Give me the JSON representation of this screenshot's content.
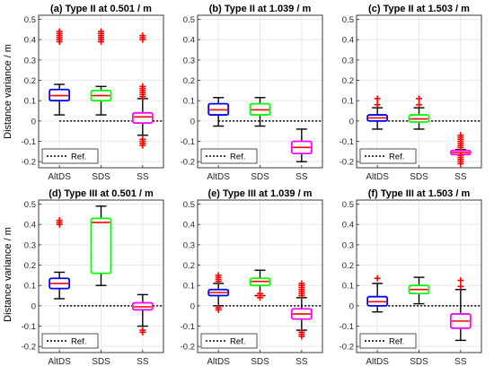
{
  "figure": {
    "ylabel": "Distance variance / m",
    "legend_label": "Ref."
  },
  "chart_data": [
    {
      "type": "box",
      "title": "(a) Type II at 0.501 / m",
      "ylabel": "Distance variance / m",
      "ylim": [
        -0.23,
        0.52
      ],
      "yticks": [
        "0.5",
        "0.4",
        "0.3",
        "0.2",
        "0.1",
        "0",
        "-0.1",
        "-0.2"
      ],
      "categories": [
        "AltDS",
        "SDS",
        "SS"
      ],
      "box_colors": [
        "#0000ff",
        "#00ff00",
        "#ff00ff"
      ],
      "median_color": "#ff0000",
      "outlier_color": "#ff0000",
      "reference_y": 0,
      "legend": "Ref.",
      "legend_position": "bottom-left",
      "boxes": [
        {
          "label": "AltDS",
          "wlo": 0.03,
          "q1": 0.1,
          "med": 0.125,
          "q3": 0.155,
          "whi": 0.18,
          "outliers": [
            0.39,
            0.4,
            0.41,
            0.42,
            0.43,
            0.44
          ]
        },
        {
          "label": "SDS",
          "wlo": 0.03,
          "q1": 0.1,
          "med": 0.125,
          "q3": 0.15,
          "whi": 0.17,
          "outliers": [
            0.39,
            0.4,
            0.41,
            0.42,
            0.43,
            0.44
          ]
        },
        {
          "label": "SS",
          "wlo": -0.07,
          "q1": -0.01,
          "med": 0.02,
          "q3": 0.04,
          "whi": 0.11,
          "outliers": [
            0.12,
            0.13,
            0.14,
            0.15,
            0.16,
            0.17,
            -0.09,
            -0.1,
            -0.11,
            -0.12,
            0.4,
            0.41,
            0.42
          ]
        }
      ]
    },
    {
      "type": "box",
      "title": "(b) Type II at 1.039 / m",
      "ylim": [
        -0.23,
        0.52
      ],
      "yticks": [
        "0.5",
        "0.4",
        "0.3",
        "0.2",
        "0.1",
        "0",
        "-0.1",
        "-0.2"
      ],
      "categories": [
        "AltDS",
        "SDS",
        "SS"
      ],
      "box_colors": [
        "#0000ff",
        "#00ff00",
        "#ff00ff"
      ],
      "median_color": "#ff0000",
      "outlier_color": "#ff0000",
      "reference_y": 0,
      "legend": "Ref.",
      "legend_position": "bottom-left",
      "boxes": [
        {
          "label": "AltDS",
          "wlo": -0.025,
          "q1": 0.03,
          "med": 0.055,
          "q3": 0.085,
          "whi": 0.115,
          "outliers": []
        },
        {
          "label": "SDS",
          "wlo": -0.025,
          "q1": 0.03,
          "med": 0.055,
          "q3": 0.085,
          "whi": 0.115,
          "outliers": []
        },
        {
          "label": "SS",
          "wlo": -0.2,
          "q1": -0.16,
          "med": -0.13,
          "q3": -0.1,
          "whi": -0.04,
          "outliers": []
        }
      ]
    },
    {
      "type": "box",
      "title": "(c) Type II at 1.503 / m",
      "ylim": [
        -0.23,
        0.52
      ],
      "yticks": [
        "0.5",
        "0.4",
        "0.3",
        "0.2",
        "0.1",
        "0",
        "-0.1",
        "-0.2"
      ],
      "categories": [
        "AltDS",
        "SDS",
        "SS"
      ],
      "box_colors": [
        "#0000ff",
        "#00ff00",
        "#ff00ff"
      ],
      "median_color": "#ff0000",
      "outlier_color": "#ff0000",
      "reference_y": 0,
      "legend": "Ref.",
      "legend_position": "bottom-left",
      "boxes": [
        {
          "label": "AltDS",
          "wlo": -0.04,
          "q1": 0.0,
          "med": 0.015,
          "q3": 0.03,
          "whi": 0.065,
          "outliers": [
            0.08,
            0.11
          ]
        },
        {
          "label": "SDS",
          "wlo": -0.04,
          "q1": -0.005,
          "med": 0.01,
          "q3": 0.03,
          "whi": 0.065,
          "outliers": [
            0.08,
            0.11
          ]
        },
        {
          "label": "SS",
          "wlo": -0.165,
          "q1": -0.165,
          "med": -0.155,
          "q3": -0.145,
          "whi": -0.14,
          "outliers": [
            -0.07,
            -0.08,
            -0.09,
            -0.1,
            -0.11,
            -0.12,
            -0.13,
            -0.17,
            -0.18,
            -0.19,
            -0.2,
            -0.21
          ]
        }
      ]
    },
    {
      "type": "box",
      "title": "(d) Type III at 0.501 / m",
      "ylim": [
        -0.23,
        0.52
      ],
      "yticks": [
        "0.5",
        "0.4",
        "0.3",
        "0.2",
        "0.1",
        "0",
        "-0.1",
        "-0.2"
      ],
      "categories": [
        "AltDS",
        "SDS",
        "SS"
      ],
      "box_colors": [
        "#0000ff",
        "#00ff00",
        "#ff00ff"
      ],
      "median_color": "#ff0000",
      "outlier_color": "#ff0000",
      "reference_y": 0,
      "legend": "Ref.",
      "legend_position": "bottom-left",
      "boxes": [
        {
          "label": "AltDS",
          "wlo": 0.035,
          "q1": 0.085,
          "med": 0.11,
          "q3": 0.135,
          "whi": 0.165,
          "outliers": [
            0.4,
            0.41,
            0.42
          ]
        },
        {
          "label": "SDS",
          "wlo": 0.1,
          "q1": 0.16,
          "med": 0.41,
          "q3": 0.43,
          "whi": 0.49,
          "outliers": []
        },
        {
          "label": "SS",
          "wlo": -0.1,
          "q1": -0.02,
          "med": -0.005,
          "q3": 0.015,
          "whi": 0.055,
          "outliers": [
            -0.12,
            -0.13
          ]
        }
      ]
    },
    {
      "type": "box",
      "title": "(e) Type III at 1.039 / m",
      "ylim": [
        -0.23,
        0.52
      ],
      "yticks": [
        "0.5",
        "0.4",
        "0.3",
        "0.2",
        "0.1",
        "0",
        "-0.1",
        "-0.2"
      ],
      "categories": [
        "AltDS",
        "SDS",
        "SS"
      ],
      "box_colors": [
        "#0000ff",
        "#00ff00",
        "#ff00ff"
      ],
      "median_color": "#ff0000",
      "outlier_color": "#ff0000",
      "reference_y": 0,
      "legend": "Ref.",
      "legend_position": "bottom-left",
      "boxes": [
        {
          "label": "AltDS",
          "wlo": 0.0,
          "q1": 0.05,
          "med": 0.065,
          "q3": 0.08,
          "whi": 0.11,
          "outliers": [
            0.12,
            0.13,
            0.14,
            0.15,
            -0.01,
            -0.02
          ]
        },
        {
          "label": "SDS",
          "wlo": 0.05,
          "q1": 0.1,
          "med": 0.12,
          "q3": 0.135,
          "whi": 0.175,
          "outliers": [
            0.04,
            0.05,
            0.06
          ]
        },
        {
          "label": "SS",
          "wlo": -0.12,
          "q1": -0.065,
          "med": -0.04,
          "q3": -0.015,
          "whi": 0.04,
          "outliers": [
            0.05,
            0.06,
            0.07,
            0.08,
            0.09,
            0.1,
            0.11,
            -0.13,
            -0.14,
            -0.15
          ]
        }
      ]
    },
    {
      "type": "box",
      "title": "(f) Type III at 1.503 / m",
      "ylim": [
        -0.23,
        0.52
      ],
      "yticks": [
        "0.5",
        "0.4",
        "0.3",
        "0.2",
        "0.1",
        "0",
        "-0.1",
        "-0.2"
      ],
      "categories": [
        "AltDS",
        "SDS",
        "SS"
      ],
      "box_colors": [
        "#0000ff",
        "#00ff00",
        "#ff00ff"
      ],
      "median_color": "#ff0000",
      "outlier_color": "#ff0000",
      "reference_y": 0,
      "legend": "Ref.",
      "legend_position": "bottom-left",
      "boxes": [
        {
          "label": "AltDS",
          "wlo": -0.03,
          "q1": 0.0,
          "med": 0.02,
          "q3": 0.045,
          "whi": 0.11,
          "outliers": [
            0.135
          ]
        },
        {
          "label": "SDS",
          "wlo": 0.01,
          "q1": 0.06,
          "med": 0.08,
          "q3": 0.1,
          "whi": 0.14,
          "outliers": []
        },
        {
          "label": "SS",
          "wlo": -0.17,
          "q1": -0.11,
          "med": -0.075,
          "q3": -0.04,
          "whi": 0.08,
          "outliers": [
            0.095,
            0.125
          ]
        }
      ]
    }
  ]
}
